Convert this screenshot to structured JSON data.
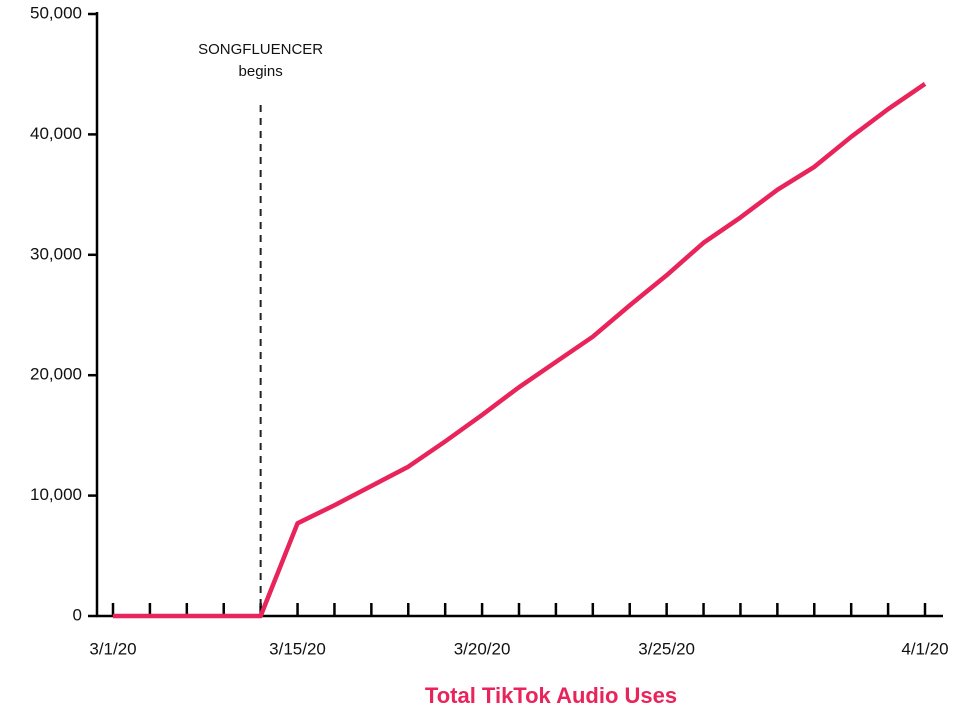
{
  "chart_data": {
    "type": "line",
    "x_label": "Total TikTok Audio Uses",
    "annotation": [
      "SONGFLUENCER",
      "begins"
    ],
    "categories": [
      "3/1/20",
      null,
      null,
      null,
      null,
      "3/15/20",
      null,
      null,
      null,
      null,
      "3/20/20",
      null,
      null,
      null,
      null,
      "3/25/20",
      null,
      null,
      null,
      null,
      null,
      null,
      "4/1/20"
    ],
    "series": [
      {
        "name": "Total TikTok Audio Uses",
        "color": "#e8245a",
        "values": [
          0,
          0,
          0,
          0,
          0,
          7700,
          9200,
          10800,
          12400,
          14500,
          16700,
          19000,
          21100,
          23200,
          25800,
          28300,
          31000,
          33100,
          35400,
          37300,
          39800,
          42100,
          44200
        ]
      }
    ],
    "ylim": [
      0,
      50000
    ],
    "yticks": [
      {
        "value": 0,
        "label": "0"
      },
      {
        "value": 10000,
        "label": "10,000"
      },
      {
        "value": 20000,
        "label": "20,000"
      },
      {
        "value": 30000,
        "label": "30,000"
      },
      {
        "value": 40000,
        "label": "40,000"
      },
      {
        "value": 50000,
        "label": "50,000"
      }
    ]
  }
}
